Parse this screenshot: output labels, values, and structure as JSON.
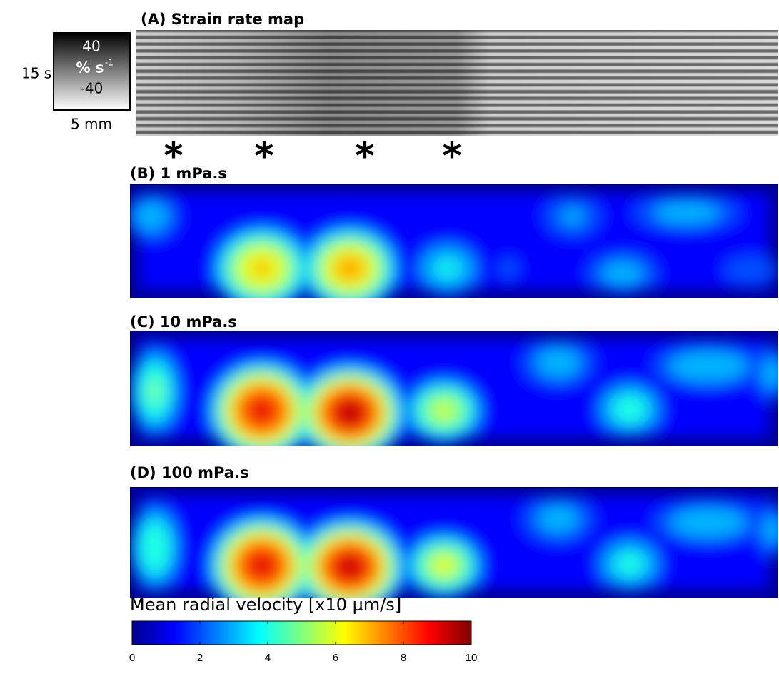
{
  "panel_a": {
    "title": "(A) Strain rate map",
    "scale_box": {
      "max_label": "40",
      "unit": "% s",
      "unit_exponent": "-1",
      "min_label": "-40"
    },
    "time_label": "15 s",
    "distance_label": "5 mm",
    "markers": [
      "*",
      "*",
      "*",
      "*"
    ]
  },
  "panels": [
    {
      "title": "(B) 1  mPa.s"
    },
    {
      "title": "(C) 10  mPa.s"
    },
    {
      "title": "(D) 100  mPa.s"
    }
  ],
  "colorbar": {
    "label": "Mean radial velocity [x10 µm/s]",
    "lim": [
      0,
      10
    ],
    "ticks": [
      0,
      2,
      4,
      6,
      8,
      10
    ]
  }
}
